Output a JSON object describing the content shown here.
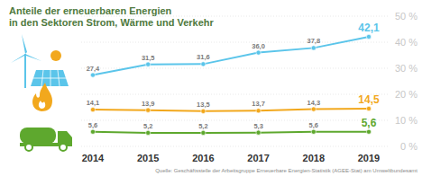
{
  "chart_data": {
    "type": "line",
    "title": "Anteile der erneuerbaren Energien",
    "subtitle": "in den Sektoren Strom, Wärme und Verkehr",
    "source": "Quelle: Geschäftsstelle der Arbeitsgruppe Erneuerbare Energien-Statistik (AGEE-Stat) am Umweltbundesamt",
    "categories": [
      "2014",
      "2015",
      "2016",
      "2017",
      "2018",
      "2019"
    ],
    "series": [
      {
        "color": "#5bc5ea",
        "marker": "circle",
        "values": [
          27.4,
          31.5,
          31.6,
          36.0,
          37.8,
          42.1
        ],
        "value_labels": [
          "27,4",
          "31,5",
          "31,6",
          "36,0",
          "37,8",
          "42,1"
        ]
      },
      {
        "color": "#f2a81d",
        "marker": "circle",
        "values": [
          14.1,
          13.9,
          13.5,
          13.7,
          14.3,
          14.5
        ],
        "value_labels": [
          "14,1",
          "13,9",
          "13,5",
          "13,7",
          "14,3",
          "14,5"
        ]
      },
      {
        "color": "#5ea82e",
        "marker": "circle",
        "values": [
          5.6,
          5.2,
          5.2,
          5.3,
          5.6,
          5.6
        ],
        "value_labels": [
          "5,6",
          "5,2",
          "5,2",
          "5,3",
          "5,6",
          "5,6"
        ]
      }
    ],
    "ylim": [
      0,
      50
    ],
    "yticks": [
      {
        "value": 0,
        "label": "0 %"
      },
      {
        "value": 10,
        "label": "10 %"
      },
      {
        "value": 20,
        "label": "20 %"
      },
      {
        "value": 30,
        "label": "30 %"
      },
      {
        "value": 40,
        "label": "40 %"
      },
      {
        "value": 50,
        "label": "50 %"
      }
    ],
    "grid": true,
    "data_labels": true
  }
}
